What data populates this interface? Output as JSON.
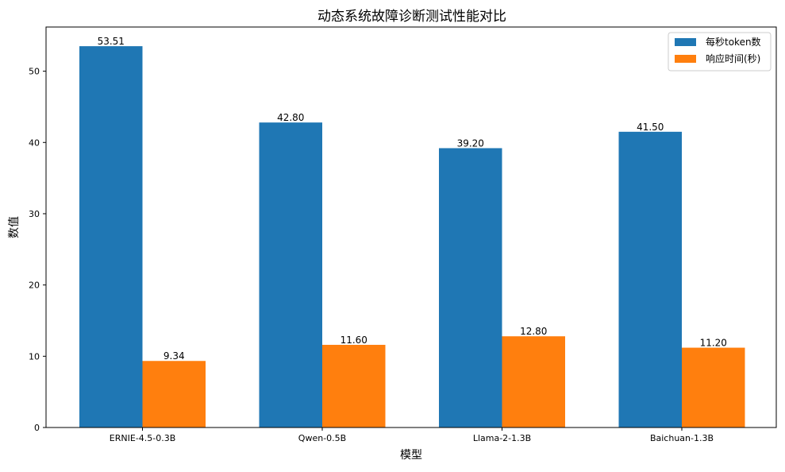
{
  "chart_data": {
    "type": "bar",
    "title": "动态系统故障诊断测试性能对比",
    "xlabel": "模型",
    "ylabel": "数值",
    "categories": [
      "ERNIE-4.5-0.3B",
      "Qwen-0.5B",
      "Llama-2-1.3B",
      "Baichuan-1.3B"
    ],
    "series": [
      {
        "name": "每秒token数",
        "color": "#1f77b4",
        "values": [
          53.51,
          42.8,
          39.2,
          41.5
        ],
        "value_labels": [
          "53.51",
          "42.80",
          "39.20",
          "41.50"
        ]
      },
      {
        "name": "响应时间(秒)",
        "color": "#ff7f0e",
        "values": [
          9.34,
          11.6,
          12.8,
          11.2
        ],
        "value_labels": [
          "9.34",
          "11.60",
          "12.80",
          "11.20"
        ]
      }
    ],
    "yticks": [
      "0",
      "10",
      "20",
      "30",
      "40",
      "50"
    ],
    "ylim": [
      0,
      56.2
    ],
    "grid": false,
    "legend_position": "top-right"
  }
}
